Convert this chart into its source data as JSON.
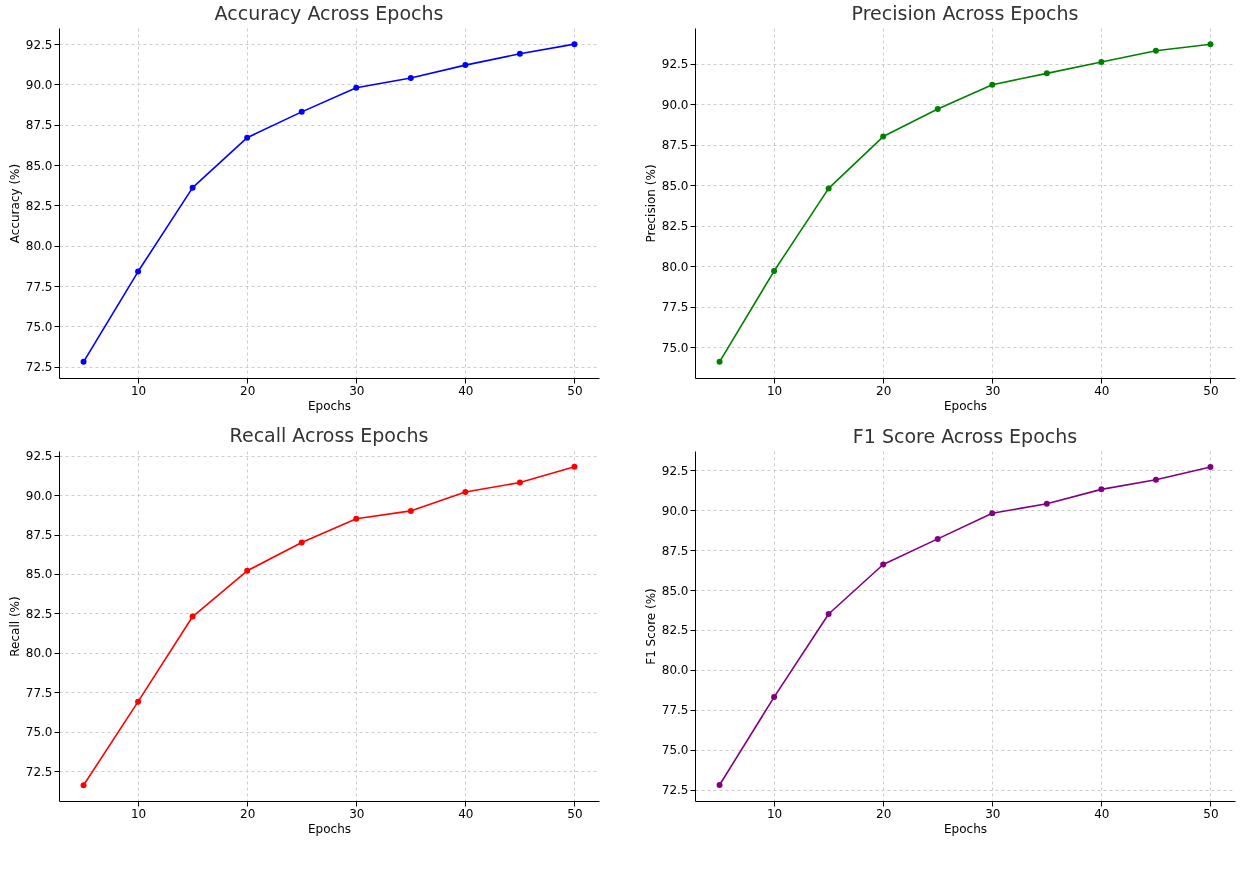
{
  "chart_data": [
    {
      "type": "line",
      "title": "Accuracy Across Epochs",
      "xlabel": "Epochs",
      "ylabel": "Accuracy (%)",
      "x": [
        5,
        10,
        15,
        20,
        25,
        30,
        35,
        40,
        45,
        50
      ],
      "series": [
        {
          "color": "#0000ff",
          "values": [
            72.8,
            78.4,
            83.6,
            86.7,
            88.3,
            89.8,
            90.4,
            91.2,
            91.9,
            92.5
          ]
        }
      ],
      "marker": "circle",
      "grid": true,
      "xlim": [
        2.75,
        52.25
      ],
      "xticks": [
        10,
        20,
        30,
        40,
        50
      ],
      "ylim": [
        71.8,
        93.5
      ],
      "yticks": [
        72.5,
        {
          "value": 75,
          "label": "75.0"
        },
        77.5,
        {
          "value": 80,
          "label": "80.0"
        },
        82.5,
        {
          "value": 85,
          "label": "85.0"
        },
        87.5,
        {
          "value": 90,
          "label": "90.0"
        },
        92.5
      ]
    },
    {
      "type": "line",
      "title": "Precision Across Epochs",
      "xlabel": "Epochs",
      "ylabel": "Precision (%)",
      "x": [
        5,
        10,
        15,
        20,
        25,
        30,
        35,
        40,
        45,
        50
      ],
      "series": [
        {
          "color": "#008000",
          "values": [
            74.1,
            79.7,
            84.8,
            88.0,
            89.7,
            91.2,
            91.9,
            92.6,
            93.3,
            93.7
          ]
        }
      ],
      "marker": "circle",
      "grid": true,
      "xlim": [
        2.75,
        52.25
      ],
      "xticks": [
        10,
        20,
        30,
        40,
        50
      ],
      "ylim": [
        73.1,
        94.7
      ],
      "yticks": [
        {
          "value": 75,
          "label": "75.0"
        },
        77.5,
        {
          "value": 80,
          "label": "80.0"
        },
        82.5,
        {
          "value": 85,
          "label": "85.0"
        },
        87.5,
        {
          "value": 90,
          "label": "90.0"
        },
        92.5
      ]
    },
    {
      "type": "line",
      "title": "Recall Across Epochs",
      "xlabel": "Epochs",
      "ylabel": "Recall (%)",
      "x": [
        5,
        10,
        15,
        20,
        25,
        30,
        35,
        40,
        45,
        50
      ],
      "series": [
        {
          "color": "#ff0000",
          "values": [
            71.6,
            76.9,
            82.3,
            85.2,
            87.0,
            88.5,
            89.0,
            90.2,
            90.8,
            91.8
          ]
        }
      ],
      "marker": "circle",
      "grid": true,
      "xlim": [
        2.75,
        52.25
      ],
      "xticks": [
        10,
        20,
        30,
        40,
        50
      ],
      "ylim": [
        70.6,
        92.8
      ],
      "yticks": [
        72.5,
        {
          "value": 75,
          "label": "75.0"
        },
        77.5,
        {
          "value": 80,
          "label": "80.0"
        },
        82.5,
        {
          "value": 85,
          "label": "85.0"
        },
        87.5,
        {
          "value": 90,
          "label": "90.0"
        },
        92.5
      ]
    },
    {
      "type": "line",
      "title": "F1 Score Across Epochs",
      "xlabel": "Epochs",
      "ylabel": "F1 Score (%)",
      "x": [
        5,
        10,
        15,
        20,
        25,
        30,
        35,
        40,
        45,
        50
      ],
      "series": [
        {
          "color": "#800080",
          "values": [
            72.8,
            78.3,
            83.5,
            86.6,
            88.2,
            89.8,
            90.4,
            91.3,
            91.9,
            92.7
          ]
        }
      ],
      "marker": "circle",
      "grid": true,
      "xlim": [
        2.75,
        52.25
      ],
      "xticks": [
        10,
        20,
        30,
        40,
        50
      ],
      "ylim": [
        71.8,
        93.7
      ],
      "yticks": [
        72.5,
        {
          "value": 75,
          "label": "75.0"
        },
        77.5,
        {
          "value": 80,
          "label": "80.0"
        },
        82.5,
        {
          "value": 85,
          "label": "85.0"
        },
        87.5,
        {
          "value": 90,
          "label": "90.0"
        },
        92.5
      ]
    }
  ]
}
